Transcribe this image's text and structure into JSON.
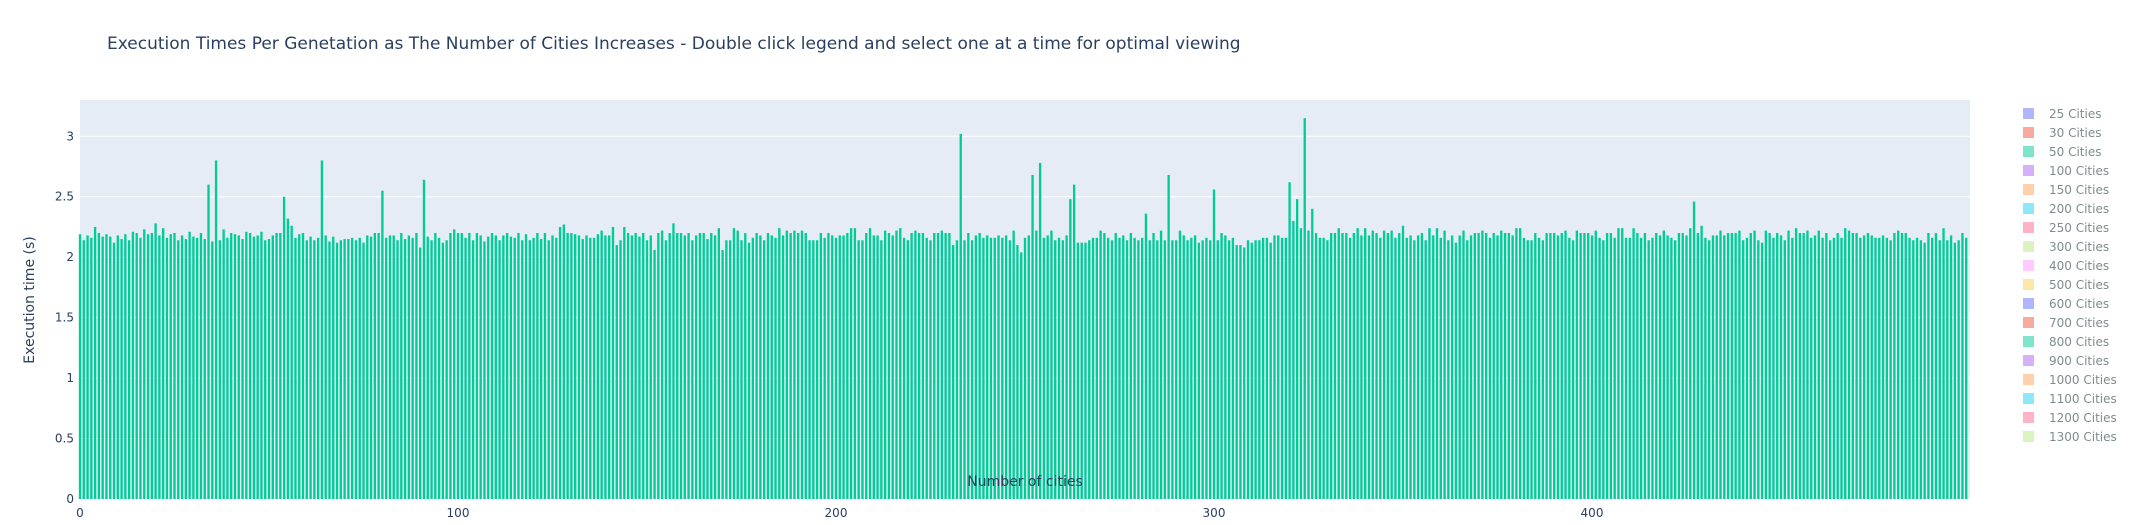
{
  "chart_data": {
    "type": "bar",
    "title": "Execution Times Per Genetation as The Number of Cities Increases - Double click legend and select one at a time for optimal viewing",
    "xlabel": "Number of cities",
    "ylabel": "Execution time (s)",
    "xlim": [
      0,
      500
    ],
    "ylim": [
      0,
      3.3
    ],
    "x_ticks": [
      0,
      100,
      200,
      300,
      400
    ],
    "y_ticks": [
      0,
      0.5,
      1,
      1.5,
      2,
      2.5,
      3
    ],
    "y_tick_labels": [
      "0",
      "0.5",
      "1",
      "1.5",
      "2",
      "2.5",
      "3"
    ],
    "grid": true,
    "legend_position": "right",
    "series": [
      {
        "name": "50 Cities",
        "color": "#00cc96",
        "x_start": 0,
        "x_step": 1,
        "baseline": 2.17,
        "values_note_free": true,
        "values": [
          2.19,
          2.14,
          2.18,
          2.16,
          2.25,
          2.2,
          2.17,
          2.19,
          2.17,
          2.12,
          2.18,
          2.15,
          2.19,
          2.14,
          2.21,
          2.2,
          2.16,
          2.23,
          2.19,
          2.2,
          2.28,
          2.18,
          2.24,
          2.16,
          2.19,
          2.2,
          2.14,
          2.18,
          2.15,
          2.21,
          2.17,
          2.16,
          2.2,
          2.15,
          2.6,
          2.13,
          2.8,
          2.14,
          2.23,
          2.16,
          2.2,
          2.19,
          2.18,
          2.15,
          2.21,
          2.2,
          2.17,
          2.18,
          2.21,
          2.14,
          2.15,
          2.18,
          2.2,
          2.2,
          2.5,
          2.32,
          2.26,
          2.16,
          2.19,
          2.2,
          2.14,
          2.17,
          2.14,
          2.16,
          2.8,
          2.18,
          2.13,
          2.17,
          2.12,
          2.14,
          2.15,
          2.15,
          2.16,
          2.14,
          2.16,
          2.12,
          2.18,
          2.17,
          2.2,
          2.2,
          2.55,
          2.16,
          2.18,
          2.18,
          2.14,
          2.2,
          2.15,
          2.18,
          2.16,
          2.2,
          2.08,
          2.64,
          2.17,
          2.14,
          2.2,
          2.16,
          2.12,
          2.14,
          2.2,
          2.23,
          2.2,
          2.2,
          2.16,
          2.2,
          2.14,
          2.2,
          2.18,
          2.13,
          2.17,
          2.2,
          2.18,
          2.14,
          2.18,
          2.2,
          2.17,
          2.16,
          2.2,
          2.14,
          2.19,
          2.14,
          2.16,
          2.2,
          2.15,
          2.2,
          2.14,
          2.18,
          2.16,
          2.25,
          2.27,
          2.2,
          2.2,
          2.19,
          2.18,
          2.15,
          2.18,
          2.16,
          2.16,
          2.19,
          2.22,
          2.18,
          2.18,
          2.25,
          2.1,
          2.14,
          2.25,
          2.2,
          2.18,
          2.2,
          2.17,
          2.2,
          2.14,
          2.18,
          2.06,
          2.2,
          2.22,
          2.14,
          2.2,
          2.28,
          2.2,
          2.2,
          2.18,
          2.2,
          2.14,
          2.18,
          2.2,
          2.2,
          2.15,
          2.2,
          2.18,
          2.24,
          2.06,
          2.14,
          2.14,
          2.24,
          2.22,
          2.14,
          2.2,
          2.12,
          2.16,
          2.2,
          2.18,
          2.14,
          2.2,
          2.18,
          2.16,
          2.24,
          2.18,
          2.22,
          2.2,
          2.22,
          2.2,
          2.22,
          2.2,
          2.14,
          2.14,
          2.14,
          2.2,
          2.16,
          2.2,
          2.18,
          2.16,
          2.18,
          2.18,
          2.2,
          2.24,
          2.24,
          2.14,
          2.14,
          2.2,
          2.24,
          2.18,
          2.18,
          2.14,
          2.22,
          2.2,
          2.18,
          2.22,
          2.24,
          2.16,
          2.14,
          2.2,
          2.22,
          2.2,
          2.2,
          2.16,
          2.14,
          2.2,
          2.2,
          2.22,
          2.2,
          2.2,
          2.1,
          2.14,
          3.02,
          2.14,
          2.2,
          2.14,
          2.18,
          2.2,
          2.16,
          2.18,
          2.16,
          2.16,
          2.18,
          2.16,
          2.18,
          2.14,
          2.22,
          2.1,
          2.04,
          2.16,
          2.18,
          2.68,
          2.22,
          2.78,
          2.16,
          2.18,
          2.22,
          2.14,
          2.16,
          2.14,
          2.18,
          2.48,
          2.6,
          2.12,
          2.12,
          2.12,
          2.14,
          2.16,
          2.16,
          2.22,
          2.2,
          2.16,
          2.14,
          2.2,
          2.16,
          2.18,
          2.14,
          2.2,
          2.16,
          2.14,
          2.16,
          2.36,
          2.14,
          2.2,
          2.14,
          2.22,
          2.14,
          2.68,
          2.14,
          2.14,
          2.22,
          2.18,
          2.14,
          2.16,
          2.18,
          2.12,
          2.14,
          2.16,
          2.14,
          2.56,
          2.14,
          2.2,
          2.18,
          2.14,
          2.16,
          2.1,
          2.1,
          2.08,
          2.14,
          2.12,
          2.14,
          2.14,
          2.16,
          2.16,
          2.12,
          2.18,
          2.18,
          2.16,
          2.16,
          2.62,
          2.3,
          2.48,
          2.24,
          3.15,
          2.22,
          2.4,
          2.2,
          2.16,
          2.16,
          2.14,
          2.2,
          2.2,
          2.24,
          2.2,
          2.2,
          2.16,
          2.2,
          2.24,
          2.18,
          2.24,
          2.18,
          2.22,
          2.2,
          2.16,
          2.22,
          2.2,
          2.22,
          2.16,
          2.2,
          2.26,
          2.16,
          2.18,
          2.14,
          2.18,
          2.2,
          2.14,
          2.24,
          2.18,
          2.24,
          2.16,
          2.22,
          2.14,
          2.18,
          2.12,
          2.18,
          2.22,
          2.14,
          2.18,
          2.2,
          2.2,
          2.22,
          2.2,
          2.16,
          2.2,
          2.18,
          2.22,
          2.2,
          2.2,
          2.18,
          2.24,
          2.24,
          2.16,
          2.14,
          2.14,
          2.2,
          2.16,
          2.14,
          2.2,
          2.2,
          2.2,
          2.18,
          2.2,
          2.22,
          2.16,
          2.14,
          2.22,
          2.2,
          2.2,
          2.2,
          2.18,
          2.22,
          2.16,
          2.14,
          2.2,
          2.2,
          2.16,
          2.24,
          2.24,
          2.16,
          2.16,
          2.24,
          2.2,
          2.16,
          2.2,
          2.14,
          2.16,
          2.2,
          2.18,
          2.22,
          2.18,
          2.16,
          2.14,
          2.2,
          2.2,
          2.18,
          2.24,
          2.46,
          2.2,
          2.26,
          2.16,
          2.14,
          2.18,
          2.18,
          2.22,
          2.18,
          2.2,
          2.2,
          2.2,
          2.22,
          2.14,
          2.16,
          2.2,
          2.22,
          2.14,
          2.12,
          2.22,
          2.2,
          2.16,
          2.2,
          2.18,
          2.14,
          2.22,
          2.16,
          2.24,
          2.2,
          2.2,
          2.22,
          2.16,
          2.18,
          2.22,
          2.16,
          2.2,
          2.14,
          2.16,
          2.2,
          2.16,
          2.24,
          2.22,
          2.2,
          2.2,
          2.16,
          2.18,
          2.2,
          2.18,
          2.16,
          2.16,
          2.18,
          2.16,
          2.14,
          2.2,
          2.22,
          2.2,
          2.2,
          2.16,
          2.14,
          2.16,
          2.14,
          2.12,
          2.2,
          2.16,
          2.2,
          2.14,
          2.24,
          2.14,
          2.18,
          2.12,
          2.14,
          2.2,
          2.16
        ]
      }
    ],
    "legend": [
      {
        "name": "25 Cities",
        "color": "#636efa"
      },
      {
        "name": "30 Cities",
        "color": "#ef553b"
      },
      {
        "name": "50 Cities",
        "color": "#00cc96"
      },
      {
        "name": "100 Cities",
        "color": "#ab63fa"
      },
      {
        "name": "150 Cities",
        "color": "#ffa15a"
      },
      {
        "name": "200 Cities",
        "color": "#19d3f3"
      },
      {
        "name": "250 Cities",
        "color": "#ff6692"
      },
      {
        "name": "300 Cities",
        "color": "#b6e880"
      },
      {
        "name": "400 Cities",
        "color": "#ff97ff"
      },
      {
        "name": "500 Cities",
        "color": "#fecb52"
      },
      {
        "name": "600 Cities",
        "color": "#636efa"
      },
      {
        "name": "700 Cities",
        "color": "#ef553b"
      },
      {
        "name": "800 Cities",
        "color": "#00cc96"
      },
      {
        "name": "900 Cities",
        "color": "#ab63fa"
      },
      {
        "name": "1000 Cities",
        "color": "#ffa15a"
      },
      {
        "name": "1100 Cities",
        "color": "#19d3f3"
      },
      {
        "name": "1200 Cities",
        "color": "#ff6692"
      },
      {
        "name": "1300 Cities",
        "color": "#b6e880"
      }
    ]
  }
}
